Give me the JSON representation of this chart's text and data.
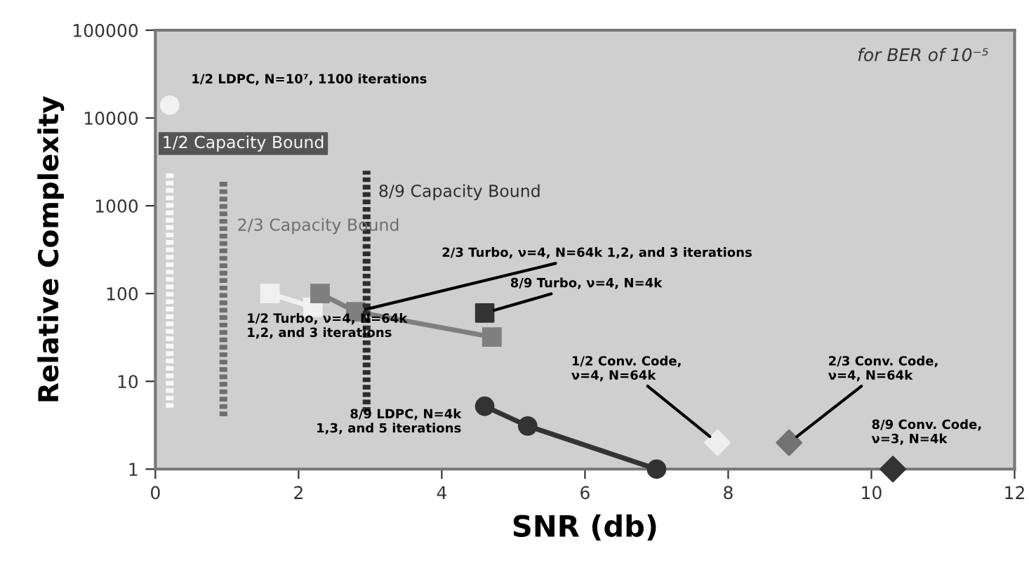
{
  "chart_data": {
    "type": "line",
    "xlabel": "SNR (db)",
    "ylabel": "Relative Complexity",
    "log": "y",
    "xlim": [
      0,
      12
    ],
    "xticks": [
      0,
      2,
      4,
      6,
      8,
      10,
      12
    ],
    "ylim": [
      1,
      100000
    ],
    "yticks": [
      1,
      10,
      100,
      1000,
      10000,
      100000
    ],
    "grid": false,
    "annotations": [
      "for BER of 10⁻⁵"
    ],
    "series": [
      {
        "name": "1/2 LDPC, N=10⁷, 1100 iterations",
        "type": "scatter",
        "marker": "circle",
        "color": "#f2f2f2",
        "x": [
          0.2
        ],
        "values": [
          14000
        ]
      },
      {
        "name": "1/2 Turbo, ν=4, N=64k\n1,2, and 3 iterations",
        "marker": "square",
        "color": "#f0f0f0",
        "x": [
          1.6,
          2.2
        ],
        "values": [
          100,
          70
        ]
      },
      {
        "name": "2/3 Turbo, ν=4, N=64k 1,2, and 3 iterations",
        "marker": "square",
        "color": "#7f7f7f",
        "x": [
          2.3,
          2.8,
          4.7
        ],
        "values": [
          100,
          62,
          32
        ]
      },
      {
        "name": "8/9 Turbo, ν=4, N=4k",
        "type": "scatter",
        "marker": "square",
        "color": "#333333",
        "x": [
          4.6
        ],
        "values": [
          60
        ]
      },
      {
        "name": "8/9 LDPC, N=4k\n1,3, and 5 iterations",
        "marker": "circle",
        "color": "#333333",
        "x": [
          4.6,
          5.2,
          7.0
        ],
        "values": [
          5.2,
          3.1,
          1
        ]
      },
      {
        "name": "1/2 Conv. Code,\nν=4, N=64k",
        "type": "scatter",
        "marker": "diamond",
        "color": "#eeeeee",
        "x": [
          7.85
        ],
        "values": [
          2
        ]
      },
      {
        "name": "2/3 Conv. Code,\nν=4, N=64k",
        "type": "scatter",
        "marker": "diamond",
        "color": "#737373",
        "x": [
          8.85
        ],
        "values": [
          2
        ]
      },
      {
        "name": "8/9 Conv. Code,\nν=3, N=4k",
        "type": "scatter",
        "marker": "diamond",
        "color": "#333333",
        "x": [
          10.3
        ],
        "values": [
          1
        ]
      },
      {
        "name": "1/2 Capacity Bound",
        "marker": "none",
        "line_style": "dotted",
        "color": "#f8f8f8",
        "x": [
          0.2,
          0.2
        ],
        "values": [
          5,
          2500
        ]
      },
      {
        "name": "2/3 Capacity Bound",
        "marker": "none",
        "line_style": "dotted",
        "color": "#6e6e6e",
        "x": [
          0.95,
          0.95
        ],
        "values": [
          4,
          2000
        ]
      },
      {
        "name": "8/9 Capacity Bound",
        "marker": "none",
        "line_style": "dotted",
        "color": "#2e2e2e",
        "x": [
          2.95,
          2.95
        ],
        "values": [
          4.5,
          2500
        ]
      }
    ]
  }
}
